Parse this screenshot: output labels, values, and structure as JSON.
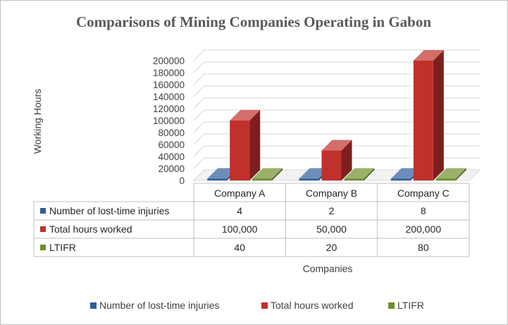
{
  "chart_data": {
    "type": "bar",
    "style": "3d-clustered-column-with-data-table",
    "title": "Comparisons of Mining Companies Operating in Gabon",
    "ylabel": "Working Hours",
    "xlabel": "Companies",
    "ylim": [
      0,
      200000
    ],
    "ytick_step": 20000,
    "grid": true,
    "legend_position": "bottom",
    "categories": [
      "Company A",
      "Company B",
      "Company C"
    ],
    "series": [
      {
        "name": "Number of lost-time injuries",
        "color": "#2e5e9e",
        "values": [
          4,
          2,
          8
        ],
        "labels": [
          "4",
          "2",
          "8"
        ]
      },
      {
        "name": "Total hours worked",
        "color": "#c0302c",
        "values": [
          100000,
          50000,
          200000
        ],
        "labels": [
          "100,000",
          "50,000",
          "200,000"
        ]
      },
      {
        "name": "LTIFR",
        "color": "#6e8f2a",
        "values": [
          40,
          20,
          80
        ],
        "labels": [
          "40",
          "20",
          "80"
        ]
      }
    ]
  }
}
